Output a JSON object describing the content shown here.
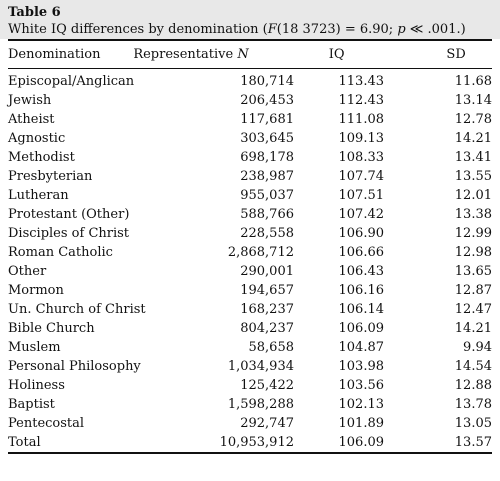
{
  "table": {
    "label": "Table 6",
    "caption_prefix": "White IQ differences by denomination (",
    "caption_F": "F",
    "caption_middle": "(18 3723) = 6.90; ",
    "caption_p": "p",
    "caption_suffix": " ≪ .001.)",
    "headers": {
      "denomination": "Denomination",
      "n_prefix": "Representative ",
      "n_var": "N",
      "iq": "IQ",
      "sd": "SD"
    },
    "rows": [
      {
        "denomination": "Episcopal/Anglican",
        "n": "180,714",
        "iq": "113.43",
        "sd": "11.68"
      },
      {
        "denomination": "Jewish",
        "n": "206,453",
        "iq": "112.43",
        "sd": "13.14"
      },
      {
        "denomination": "Atheist",
        "n": "117,681",
        "iq": "111.08",
        "sd": "12.78"
      },
      {
        "denomination": "Agnostic",
        "n": "303,645",
        "iq": "109.13",
        "sd": "14.21"
      },
      {
        "denomination": "Methodist",
        "n": "698,178",
        "iq": "108.33",
        "sd": "13.41"
      },
      {
        "denomination": "Presbyterian",
        "n": "238,987",
        "iq": "107.74",
        "sd": "13.55"
      },
      {
        "denomination": "Lutheran",
        "n": "955,037",
        "iq": "107.51",
        "sd": "12.01"
      },
      {
        "denomination": "Protestant (Other)",
        "n": "588,766",
        "iq": "107.42",
        "sd": "13.38"
      },
      {
        "denomination": "Disciples of Christ",
        "n": "228,558",
        "iq": "106.90",
        "sd": "12.99"
      },
      {
        "denomination": "Roman Catholic",
        "n": "2,868,712",
        "iq": "106.66",
        "sd": "12.98"
      },
      {
        "denomination": "Other",
        "n": "290,001",
        "iq": "106.43",
        "sd": "13.65"
      },
      {
        "denomination": "Mormon",
        "n": "194,657",
        "iq": "106.16",
        "sd": "12.87"
      },
      {
        "denomination": "Un. Church of Christ",
        "n": "168,237",
        "iq": "106.14",
        "sd": "12.47"
      },
      {
        "denomination": "Bible Church",
        "n": "804,237",
        "iq": "106.09",
        "sd": "14.21"
      },
      {
        "denomination": "Muslem",
        "n": "58,658",
        "iq": "104.87",
        "sd": "9.94"
      },
      {
        "denomination": "Personal Philosophy",
        "n": "1,034,934",
        "iq": "103.98",
        "sd": "14.54"
      },
      {
        "denomination": "Holiness",
        "n": "125,422",
        "iq": "103.56",
        "sd": "12.88"
      },
      {
        "denomination": "Baptist",
        "n": "1,598,288",
        "iq": "102.13",
        "sd": "13.78"
      },
      {
        "denomination": "Pentecostal",
        "n": "292,747",
        "iq": "101.89",
        "sd": "13.05"
      },
      {
        "denomination": "Total",
        "n": "10,953,912",
        "iq": "106.09",
        "sd": "13.57"
      }
    ]
  }
}
